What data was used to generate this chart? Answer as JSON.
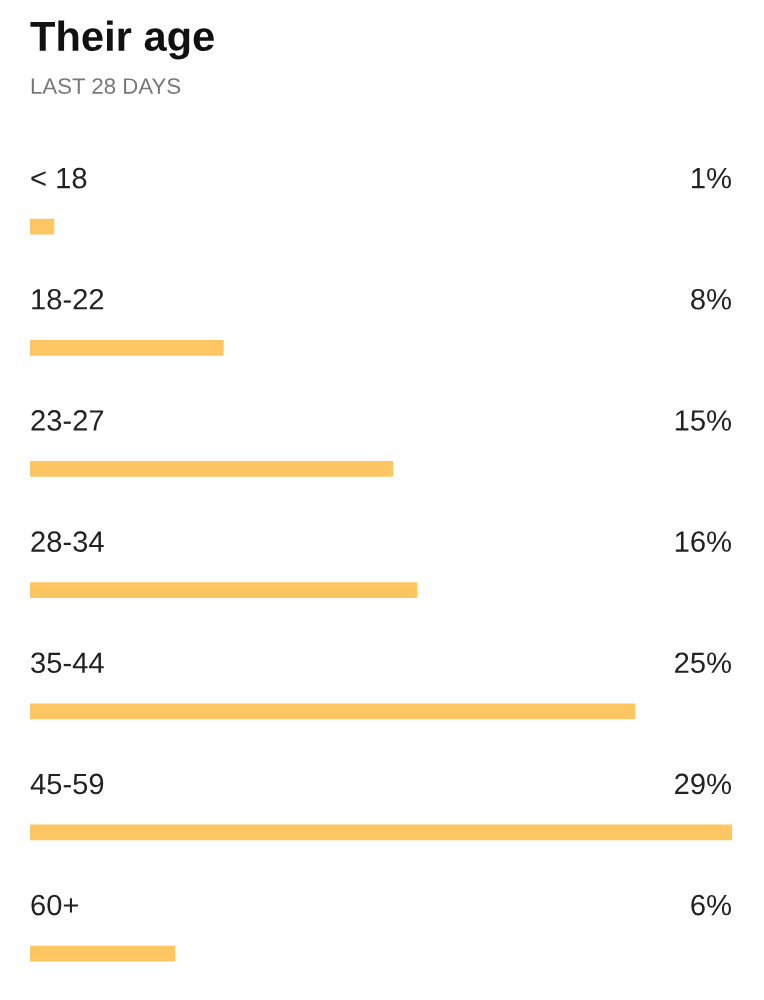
{
  "chart_data": {
    "type": "bar",
    "orientation": "horizontal",
    "title": "Their age",
    "subtitle": "LAST 28 DAYS",
    "categories": [
      "< 18",
      "18-22",
      "23-27",
      "28-34",
      "35-44",
      "45-59",
      "60+"
    ],
    "values": [
      1,
      8,
      15,
      16,
      25,
      29,
      6
    ],
    "value_labels": [
      "1%",
      "8%",
      "15%",
      "16%",
      "25%",
      "29%",
      "6%"
    ],
    "color": "#fdc662"
  }
}
